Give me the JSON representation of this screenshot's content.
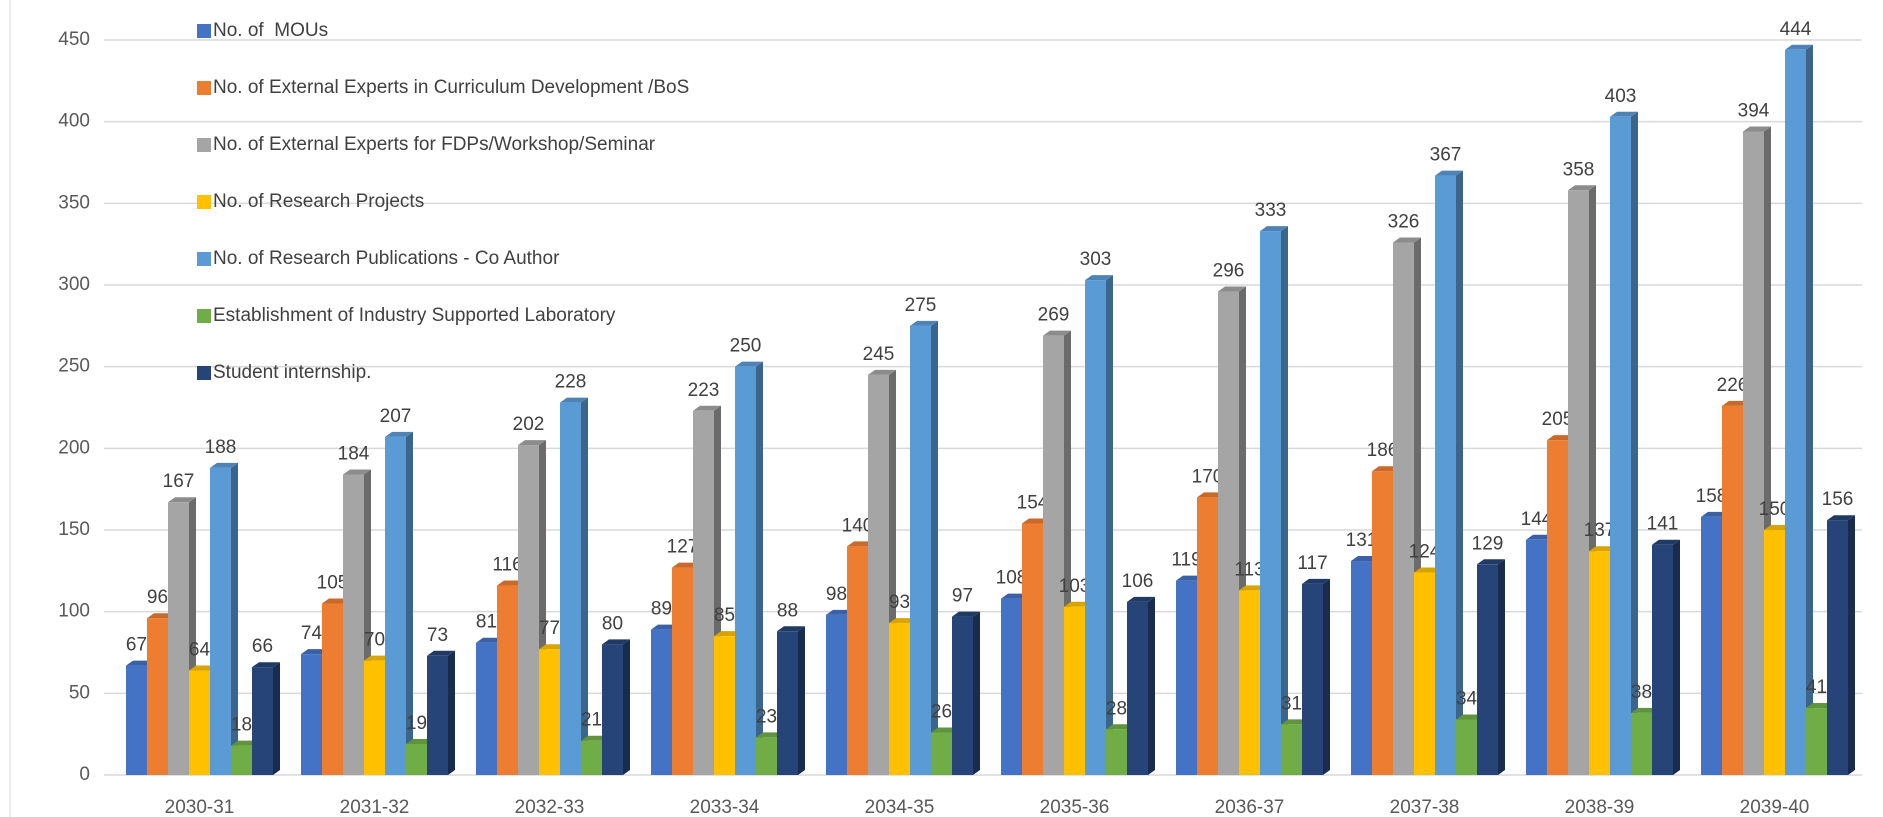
{
  "chart_data": {
    "type": "bar",
    "categories": [
      "2030-31",
      "2031-32",
      "2032-33",
      "2033-34",
      "2034-35",
      "2035-36",
      "2036-37",
      "2037-38",
      "2038-39",
      "2039-40"
    ],
    "series": [
      {
        "name": "No. of  MOUs",
        "color": "#4472c4",
        "values": [
          67,
          74,
          81,
          89,
          98,
          108,
          119,
          131,
          144,
          158
        ]
      },
      {
        "name": "No. of External Experts in Curriculum Development /BoS",
        "color": "#ed7d31",
        "values": [
          96,
          105,
          116,
          127,
          140,
          154,
          170,
          186,
          205,
          226
        ]
      },
      {
        "name": "No. of External Experts for FDPs/Workshop/Seminar",
        "color": "#a5a5a5",
        "values": [
          167,
          184,
          202,
          223,
          245,
          269,
          296,
          326,
          358,
          394
        ]
      },
      {
        "name": "No. of Research Projects",
        "color": "#ffc000",
        "values": [
          64,
          70,
          77,
          85,
          93,
          103,
          113,
          124,
          137,
          150
        ]
      },
      {
        "name": "No. of Research Publications - Co Author",
        "color": "#5b9bd5",
        "values": [
          188,
          207,
          228,
          250,
          275,
          303,
          333,
          367,
          403,
          444
        ]
      },
      {
        "name": "Establishment of Industry Supported Laboratory",
        "color": "#70ad47",
        "values": [
          18,
          19,
          21,
          23,
          26,
          28,
          31,
          34,
          38,
          41
        ]
      },
      {
        "name": "Student internship.",
        "color": "#264478",
        "values": [
          66,
          73,
          80,
          88,
          97,
          106,
          117,
          129,
          141,
          156
        ]
      }
    ],
    "ylim": [
      0,
      450
    ],
    "yticks": [
      0,
      50,
      100,
      150,
      200,
      250,
      300,
      350,
      400,
      450
    ],
    "grid": true,
    "legend": "top-left"
  }
}
